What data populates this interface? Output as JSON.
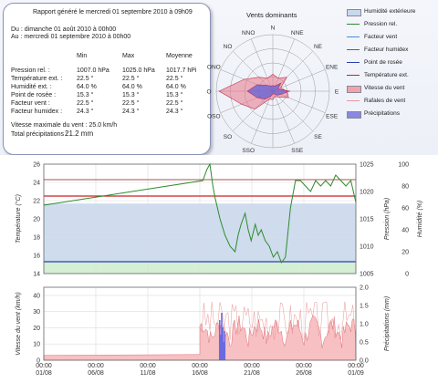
{
  "report": {
    "title": "Rapport généré le mercredi 01 septembre 2010 à 09h09",
    "from": "Du : dimanche 01 août 2010 à 00h00",
    "to": "Au : mercredi 01 septembre 2010 à 00h00",
    "headers": [
      "Min",
      "Max",
      "Moyenne"
    ],
    "rows": [
      {
        "label": "Pression rel. :",
        "min": "1007.0 hPa",
        "max": "1025.0 hPa",
        "avg": "1017.7 hPi"
      },
      {
        "label": "Température ext. :",
        "min": "22.5 °",
        "max": "22.5 °",
        "avg": "22.5 °"
      },
      {
        "label": "Humidité ext. :",
        "min": "64.0 %",
        "max": "64.0 %",
        "avg": "64.0 %"
      },
      {
        "label": "Point de rosée :",
        "min": "15.3 °",
        "max": "15.3 °",
        "avg": "15.3 °"
      },
      {
        "label": "Facteur vent :",
        "min": "22.5 °",
        "max": "22.5 °",
        "avg": "22.5 °"
      },
      {
        "label": "Facteur humidex :",
        "min": "24.3 °",
        "max": "24.3 °",
        "avg": "24.3 °"
      }
    ],
    "max_wind": "Vitesse maximale du vent : 25.0 km/h",
    "precip_label": "Total précipitations :",
    "precip_value": "21.2 mm"
  },
  "rose": {
    "title": "Vents dominants",
    "directions": [
      "N",
      "NNE",
      "NE",
      "ENE",
      "E",
      "ESE",
      "SE",
      "SSE",
      "S",
      "SSO",
      "SO",
      "OSO",
      "O",
      "ONO",
      "NO",
      "NNO"
    ],
    "speed_levels": [
      0.3,
      0.25,
      0.35,
      0.15,
      0.25,
      0.3,
      0.15,
      0.1,
      0.15,
      0.15,
      0.45,
      0.6,
      0.95,
      0.55,
      0.35,
      0.25
    ],
    "gust_levels": [
      0.1,
      0.1,
      0.2,
      0.1,
      0.3,
      0.15,
      0.1,
      0.05,
      0.05,
      0.1,
      0.2,
      0.3,
      0.45,
      0.3,
      0.15,
      0.1
    ]
  },
  "legend": [
    {
      "label": "Humidité extérieure",
      "kind": "box",
      "color": "#c9d8ec"
    },
    {
      "label": "Pression rel.",
      "kind": "line",
      "color": "#2e8b2e"
    },
    {
      "label": "Facteur vent",
      "kind": "line",
      "color": "#4a8fd8"
    },
    {
      "label": "Facteur humidex",
      "kind": "line",
      "color": "#6b4fa0"
    },
    {
      "label": "Point de rosée",
      "kind": "line",
      "color": "#2a3fb0"
    },
    {
      "label": "Température ext.",
      "kind": "line",
      "color": "#cc2222"
    },
    {
      "label": "Vitesse du vent",
      "kind": "box",
      "color": "#f2a3a8"
    },
    {
      "label": "Rafales de vent",
      "kind": "line",
      "color": "#e89898"
    },
    {
      "label": "Précipitations",
      "kind": "box",
      "color": "#8a88e0"
    }
  ],
  "colors": {
    "temp_line": "#cc2222",
    "dew_line": "#2a3fb0",
    "pressure_line": "#2e8b2e",
    "humidity_fill": "#c9d8ec",
    "green_band": "#d4efd4",
    "wind_fill": "#f7c0c3",
    "rain_bar": "#6a6ae0"
  },
  "chart_data": [
    {
      "type": "line",
      "ylabel": "Température (°C)",
      "ylabel_right": "Pression (hPa)",
      "ylabel_right2": "Humidité (%)",
      "yticks_left": [
        "26",
        "24",
        "22",
        "20",
        "18",
        "16",
        "14"
      ],
      "yticks_right": [
        "1025",
        "1020",
        "1015",
        "1010",
        "1005"
      ],
      "yticks_right2": [
        "100",
        "80",
        "60",
        "40",
        "20",
        "0"
      ],
      "ylim_temp": [
        14,
        26
      ],
      "ylim_pressure": [
        1005,
        1025
      ],
      "ylim_humidity": [
        0,
        100
      ],
      "temperature": 22.5,
      "dew_point": 15.3,
      "humidity": 64,
      "pressure_days": [
        0,
        15.8,
        16.2,
        16.5,
        16.8,
        17,
        17.5,
        18,
        18.5,
        19,
        19.3,
        19.6,
        20,
        20.3,
        20.6,
        21,
        21.3,
        21.6,
        22,
        22.4,
        22.8,
        23.2,
        23.6,
        24,
        24.5,
        25,
        25.5,
        26,
        26.5,
        27,
        27.5,
        28,
        28.5,
        29,
        29.5,
        30,
        30.5,
        31
      ],
      "pressure": [
        1017.5,
        1022,
        1024,
        1025,
        1021,
        1019,
        1015,
        1012,
        1010,
        1009,
        1012,
        1014,
        1016,
        1013,
        1011,
        1014,
        1012,
        1013,
        1011,
        1010,
        1008,
        1009,
        1007,
        1008,
        1017,
        1022,
        1022,
        1021,
        1020,
        1022,
        1021,
        1022,
        1021,
        1023,
        1022,
        1021,
        1022,
        1018
      ]
    },
    {
      "type": "area",
      "ylabel": "Vitesse du vent (km/h)",
      "ylabel_right": "Précipitations (mm)",
      "yticks_left": [
        "40",
        "30",
        "20",
        "10",
        "0"
      ],
      "yticks_right": [
        "2.0",
        "1.5",
        "1.0",
        "0.5",
        "0.0"
      ],
      "ylim_wind": [
        0,
        45
      ],
      "ylim_precip": [
        0,
        2.0
      ],
      "x_ticks": [
        "01/08",
        "06/08",
        "11/08",
        "16/08",
        "21/08",
        "26/08",
        "01/09"
      ],
      "x_time": "00:00"
    }
  ]
}
